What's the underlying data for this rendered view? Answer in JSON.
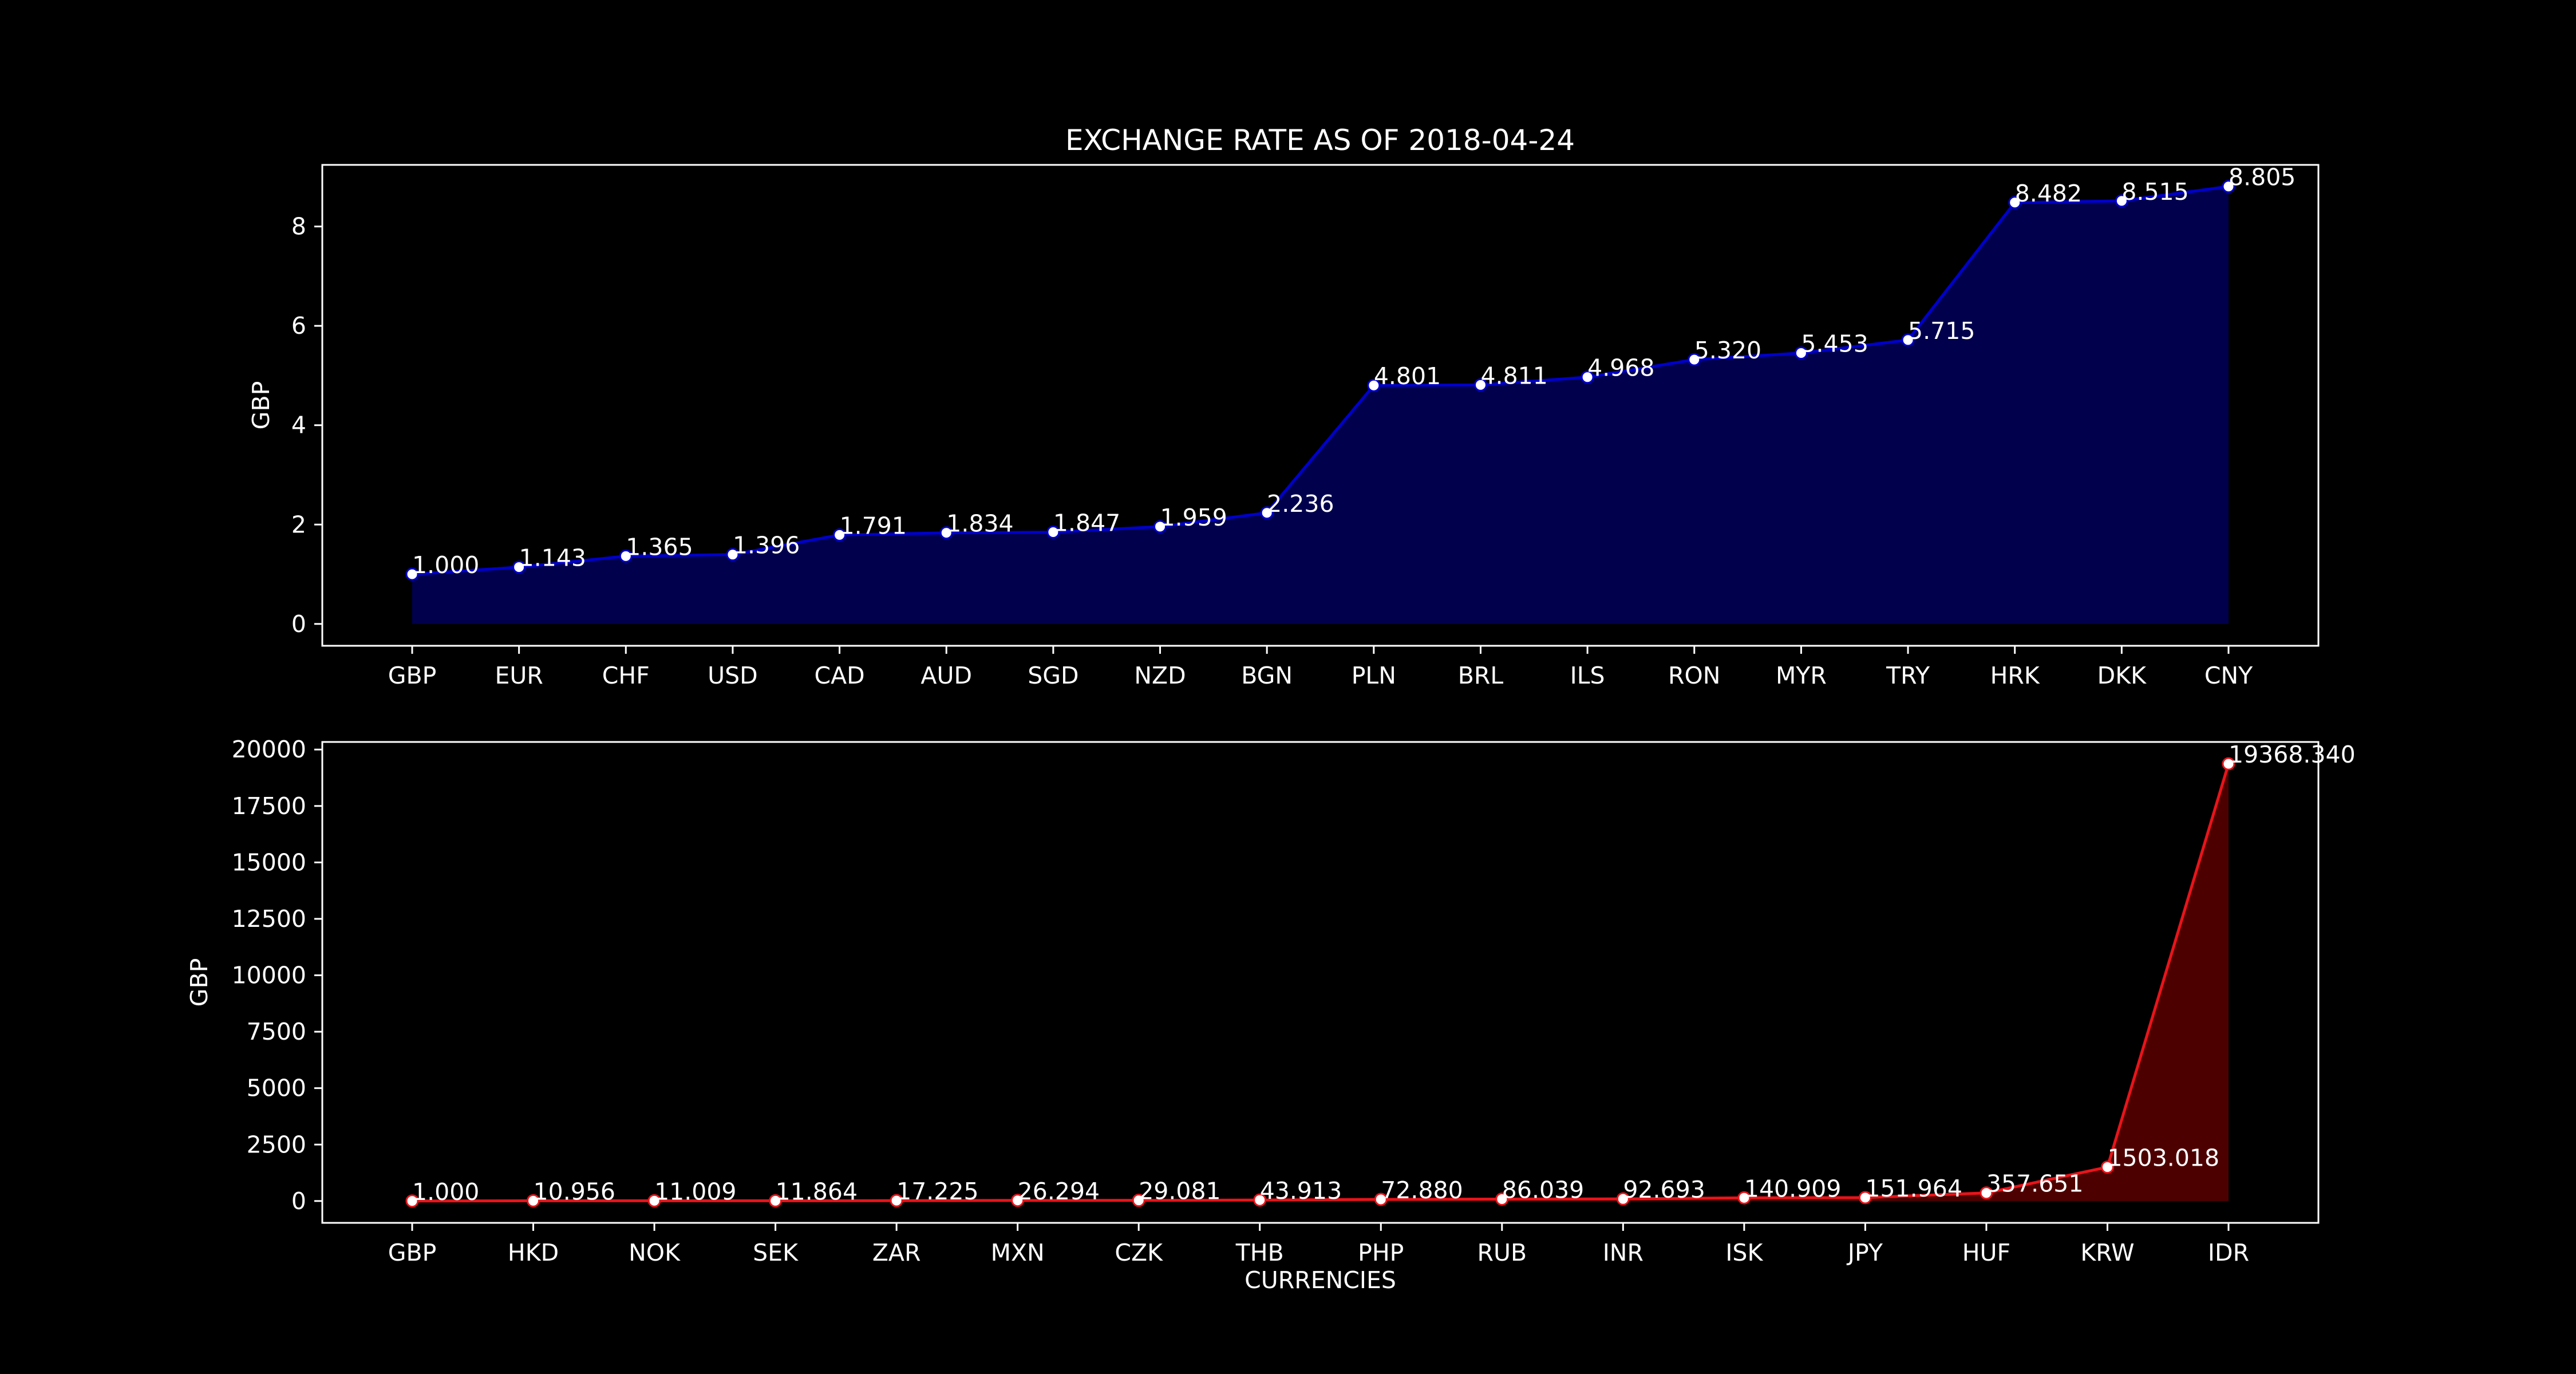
{
  "title": "EXCHANGE RATE AS OF 2018-04-24",
  "chart_data": [
    {
      "type": "area",
      "ylabel": "GBP",
      "xlabel": "",
      "ylim": [
        -0.44,
        9.24
      ],
      "yticks": [
        0,
        2,
        4,
        6,
        8
      ],
      "color": "#0000cc",
      "fill_color": "#00004d",
      "categories": [
        "GBP",
        "EUR",
        "CHF",
        "USD",
        "CAD",
        "AUD",
        "SGD",
        "NZD",
        "BGN",
        "PLN",
        "BRL",
        "ILS",
        "RON",
        "MYR",
        "TRY",
        "HRK",
        "DKK",
        "CNY"
      ],
      "values": [
        1.0,
        1.143,
        1.365,
        1.396,
        1.791,
        1.834,
        1.847,
        1.959,
        2.236,
        4.801,
        4.811,
        4.968,
        5.32,
        5.453,
        5.715,
        8.482,
        8.515,
        8.805
      ],
      "labels": [
        "1.000",
        "1.143",
        "1.365",
        "1.396",
        "1.791",
        "1.834",
        "1.847",
        "1.959",
        "2.236",
        "4.801",
        "4.811",
        "4.968",
        "5.320",
        "5.453",
        "5.715",
        "8.482",
        "8.515",
        "8.805"
      ]
    },
    {
      "type": "area",
      "ylabel": "GBP",
      "xlabel": "CURRENCIES",
      "ylim": [
        -968,
        20336
      ],
      "yticks": [
        0,
        2500,
        5000,
        7500,
        10000,
        12500,
        15000,
        17500,
        20000
      ],
      "color": "#e8141a",
      "fill_color": "#4d0000",
      "categories": [
        "GBP",
        "HKD",
        "NOK",
        "SEK",
        "ZAR",
        "MXN",
        "CZK",
        "THB",
        "PHP",
        "RUB",
        "INR",
        "ISK",
        "JPY",
        "HUF",
        "KRW",
        "IDR"
      ],
      "values": [
        1.0,
        10.956,
        11.009,
        11.864,
        17.225,
        26.294,
        29.081,
        43.913,
        72.88,
        86.039,
        92.693,
        140.909,
        151.964,
        357.651,
        1503.018,
        19368.34
      ],
      "labels": [
        "1.000",
        "10.956",
        "11.009",
        "11.864",
        "17.225",
        "26.294",
        "29.081",
        "43.913",
        "72.880",
        "86.039",
        "92.693",
        "140.909",
        "151.964",
        "357.651",
        "1503.018",
        "19368.340"
      ]
    }
  ]
}
